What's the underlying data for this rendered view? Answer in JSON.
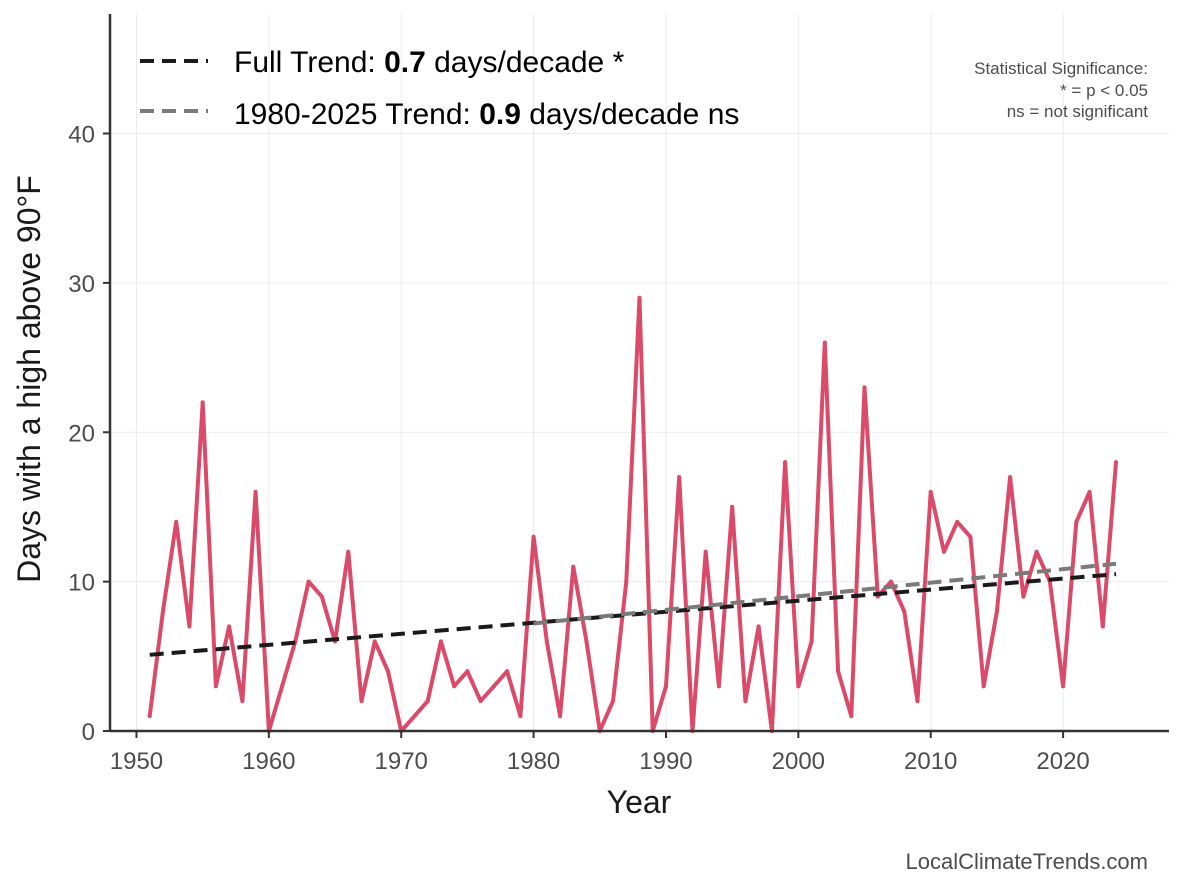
{
  "chart_data": {
    "type": "line",
    "xlabel": "Year",
    "ylabel": "Days with a high above 90°F",
    "xlim": [
      1948,
      2028
    ],
    "ylim": [
      0,
      48
    ],
    "xticks": [
      1950,
      1960,
      1970,
      1980,
      1990,
      2000,
      2010,
      2020
    ],
    "yticks": [
      0,
      10,
      20,
      30,
      40
    ],
    "grid": true,
    "series": [
      {
        "style": "solid",
        "color": "#dc4a6a",
        "x": [
          1951,
          1952,
          1953,
          1954,
          1955,
          1956,
          1957,
          1958,
          1959,
          1960,
          1961,
          1962,
          1963,
          1964,
          1965,
          1966,
          1967,
          1968,
          1969,
          1970,
          1971,
          1972,
          1973,
          1974,
          1975,
          1976,
          1977,
          1978,
          1979,
          1980,
          1981,
          1982,
          1983,
          1984,
          1985,
          1986,
          1987,
          1988,
          1989,
          1990,
          1991,
          1992,
          1993,
          1994,
          1995,
          1996,
          1997,
          1998,
          1999,
          2000,
          2001,
          2002,
          2003,
          2004,
          2005,
          2006,
          2007,
          2008,
          2009,
          2010,
          2011,
          2012,
          2013,
          2014,
          2015,
          2016,
          2017,
          2018,
          2019,
          2020,
          2021,
          2022,
          2023,
          2024
        ],
        "y": [
          1,
          8,
          14,
          7,
          22,
          3,
          7,
          2,
          16,
          0,
          3,
          6,
          10,
          9,
          6,
          12,
          2,
          6,
          4,
          0,
          1,
          2,
          6,
          3,
          4,
          2,
          3,
          4,
          1,
          13,
          6,
          1,
          11,
          6,
          0,
          2,
          10,
          29,
          0,
          3,
          17,
          0,
          12,
          3,
          15,
          2,
          7,
          0,
          18,
          3,
          6,
          26,
          4,
          1,
          23,
          9,
          10,
          8,
          2,
          16,
          12,
          14,
          13,
          3,
          8,
          17,
          9,
          12,
          10,
          3,
          14,
          16,
          7,
          18
        ]
      }
    ],
    "trends": [
      {
        "name": "Full Trend",
        "style": "dashed",
        "color": "#1a1a1a",
        "x": [
          1951,
          2024
        ],
        "y": [
          5.1,
          10.5
        ]
      },
      {
        "name": "1980-2025 Trend",
        "style": "dashed",
        "color": "#7a7a7a",
        "x": [
          1980,
          2024
        ],
        "y": [
          7.2,
          11.2
        ]
      }
    ]
  },
  "legend": {
    "items": [
      {
        "prefix": "Full Trend: ",
        "value": "0.7",
        "suffix": " days/decade *",
        "color": "#1a1a1a"
      },
      {
        "prefix": "1980-2025 Trend: ",
        "value": "0.9",
        "suffix": " days/decade ns",
        "color": "#7a7a7a"
      }
    ]
  },
  "significance_note": {
    "line1": "Statistical Significance:",
    "line2": "* = p < 0.05",
    "line3": "ns = not significant"
  },
  "credit": "LocalClimateTrends.com"
}
